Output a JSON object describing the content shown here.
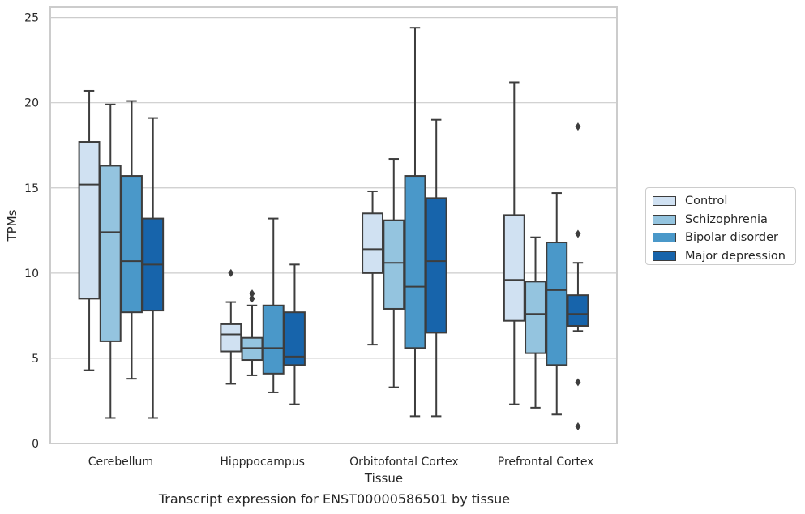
{
  "caption": "Transcript expression for ENST00000586501 by tissue",
  "chart_data": {
    "type": "box",
    "xlabel": "Tissue",
    "ylabel": "TPMs",
    "ylim": [
      0,
      25.6
    ],
    "yticks": [
      0,
      5,
      10,
      15,
      20,
      25
    ],
    "grid": "horizontal",
    "legend_position": "right",
    "categories": [
      "Cerebellum",
      "Hipppocampus",
      "Orbitofontal Cortex",
      "Prefrontal Cortex"
    ],
    "series": [
      {
        "name": "Control",
        "color": "#d0e1f2",
        "boxes": [
          {
            "low": 4.3,
            "q1": 8.5,
            "median": 15.2,
            "q3": 17.7,
            "high": 20.7,
            "outliers": []
          },
          {
            "low": 3.5,
            "q1": 5.4,
            "median": 6.4,
            "q3": 7.0,
            "high": 8.3,
            "outliers": [
              10.0
            ]
          },
          {
            "low": 5.8,
            "q1": 10.0,
            "median": 11.4,
            "q3": 13.5,
            "high": 14.8,
            "outliers": []
          },
          {
            "low": 2.3,
            "q1": 7.2,
            "median": 9.6,
            "q3": 13.4,
            "high": 21.2,
            "outliers": []
          }
        ]
      },
      {
        "name": "Schizophrenia",
        "color": "#94c4df",
        "boxes": [
          {
            "low": 1.5,
            "q1": 6.0,
            "median": 12.4,
            "q3": 16.3,
            "high": 19.9,
            "outliers": []
          },
          {
            "low": 4.0,
            "q1": 4.9,
            "median": 5.6,
            "q3": 6.2,
            "high": 8.1,
            "outliers": [
              8.5,
              8.8
            ]
          },
          {
            "low": 3.3,
            "q1": 7.9,
            "median": 10.6,
            "q3": 13.1,
            "high": 16.7,
            "outliers": []
          },
          {
            "low": 2.1,
            "q1": 5.3,
            "median": 7.6,
            "q3": 9.5,
            "high": 12.1,
            "outliers": []
          }
        ]
      },
      {
        "name": "Bipolar disorder",
        "color": "#4a98c9",
        "boxes": [
          {
            "low": 3.8,
            "q1": 7.7,
            "median": 10.7,
            "q3": 15.7,
            "high": 20.1,
            "outliers": []
          },
          {
            "low": 3.0,
            "q1": 4.1,
            "median": 5.6,
            "q3": 8.1,
            "high": 13.2,
            "outliers": []
          },
          {
            "low": 1.6,
            "q1": 5.6,
            "median": 9.2,
            "q3": 15.7,
            "high": 24.4,
            "outliers": []
          },
          {
            "low": 1.7,
            "q1": 4.6,
            "median": 9.0,
            "q3": 11.8,
            "high": 14.7,
            "outliers": []
          }
        ]
      },
      {
        "name": "Major depression",
        "color": "#1764ab",
        "boxes": [
          {
            "low": 1.5,
            "q1": 7.8,
            "median": 10.5,
            "q3": 13.2,
            "high": 19.1,
            "outliers": []
          },
          {
            "low": 2.3,
            "q1": 4.6,
            "median": 5.1,
            "q3": 7.7,
            "high": 10.5,
            "outliers": []
          },
          {
            "low": 1.6,
            "q1": 6.5,
            "median": 10.7,
            "q3": 14.4,
            "high": 19.0,
            "outliers": []
          },
          {
            "low": 6.6,
            "q1": 6.9,
            "median": 7.6,
            "q3": 8.7,
            "high": 10.6,
            "outliers": [
              18.6,
              12.3,
              3.6,
              1.0
            ]
          }
        ]
      }
    ]
  }
}
